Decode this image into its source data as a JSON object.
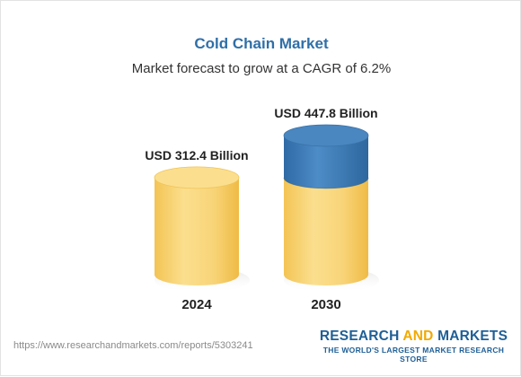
{
  "header": {
    "title": "Cold Chain Market",
    "subtitle": "Market forecast to grow at a CAGR of 6.2%"
  },
  "colors": {
    "title": "#2f6fa8",
    "base": "#f6cf6b",
    "growth": "#3a78b3"
  },
  "chart_data": {
    "type": "bar",
    "categories": [
      "2024",
      "2030"
    ],
    "values": [
      312.4,
      447.8
    ],
    "data_labels": [
      "USD 312.4 Billion",
      "USD 447.8 Billion"
    ],
    "title": "Cold Chain Market",
    "subtitle": "Market forecast to grow at a CAGR of 6.2%",
    "xlabel": "",
    "ylabel": "",
    "grid": false,
    "legend": "none"
  },
  "footer": {
    "source_url": "https://www.researchandmarkets.com/reports/5303241",
    "logo_word1": "RESEARCH ",
    "logo_word2": "AND",
    "logo_word3": " MARKETS",
    "logo_tagline": "THE WORLD'S LARGEST MARKET RESEARCH STORE"
  }
}
